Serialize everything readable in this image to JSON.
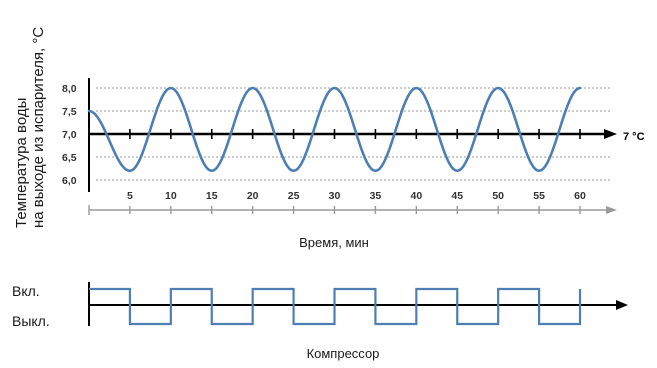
{
  "chart_data": [
    {
      "type": "line",
      "ylabel_lines": [
        "Температура воды",
        "на выходе из испарителя, °С"
      ],
      "xlabel": "Время, мин",
      "y_ticks": [
        "8,0",
        "7,5",
        "7,0",
        "6,5",
        "6,0"
      ],
      "y_tick_values": [
        8.0,
        7.5,
        7.0,
        6.5,
        6.0
      ],
      "ylim": [
        5.6,
        8.4
      ],
      "x_ticks": [
        "5",
        "10",
        "15",
        "20",
        "25",
        "30",
        "35",
        "40",
        "45",
        "50",
        "55",
        "60"
      ],
      "x_tick_values": [
        5,
        10,
        15,
        20,
        25,
        30,
        35,
        40,
        45,
        50,
        55,
        60
      ],
      "xlim": [
        0,
        65
      ],
      "setpoint_label": "7 °С",
      "setpoint_value": 7.0,
      "grid": true,
      "series": [
        {
          "x": [
            0,
            5,
            10,
            15,
            20,
            25,
            30,
            35,
            40,
            45,
            50,
            55,
            60
          ],
          "y": [
            7.5,
            6.2,
            8.0,
            6.2,
            8.0,
            6.2,
            8.0,
            6.2,
            8.0,
            6.2,
            8.0,
            6.2,
            8.0
          ]
        }
      ]
    },
    {
      "type": "line",
      "caption": "Компрессор",
      "state_labels": {
        "on": "Вкл.",
        "off": "Выкл."
      },
      "series": [
        {
          "x": [
            0,
            5,
            10,
            15,
            20,
            25,
            30,
            35,
            40,
            45,
            50,
            55,
            60
          ],
          "state": [
            1,
            0,
            1,
            0,
            1,
            0,
            1,
            0,
            1,
            0,
            1,
            0,
            1
          ]
        }
      ]
    }
  ],
  "colors": {
    "curve": "#4d7fb5",
    "square": "#4d7fb5",
    "axis": "#000000",
    "grid": "#9a9a9a",
    "lower_axis": "#9a9a9a",
    "text": "#1a1a1a"
  }
}
